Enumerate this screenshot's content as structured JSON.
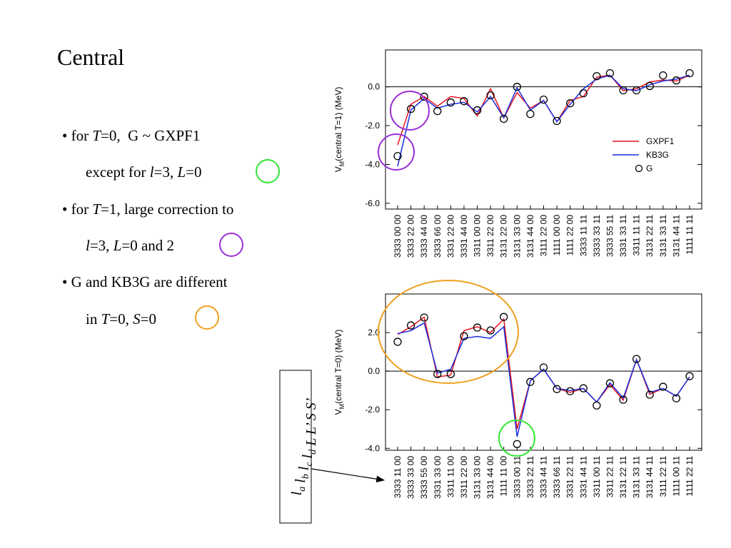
{
  "title": "Central",
  "bullets": [
    [
      {
        "text": "• for "
      },
      {
        "text": "T",
        "italic": true
      },
      {
        "text": "=0,  G ~ GXPF1"
      }
    ],
    [
      {
        "text": "except for "
      },
      {
        "text": "l",
        "italic": true
      },
      {
        "text": "=3, "
      },
      {
        "text": "L",
        "italic": true
      },
      {
        "text": "=0"
      }
    ],
    [
      {
        "text": "• for "
      },
      {
        "text": "T",
        "italic": true
      },
      {
        "text": "=1, large correction to"
      }
    ],
    [
      {
        "text": "l",
        "italic": true
      },
      {
        "text": "=3, "
      },
      {
        "text": "L",
        "italic": true
      },
      {
        "text": "=0 and 2"
      }
    ],
    [
      {
        "text": "• G and KB3G are different"
      }
    ],
    [
      {
        "text": "in "
      },
      {
        "text": "T",
        "italic": true
      },
      {
        "text": "=0, "
      },
      {
        "text": "S",
        "italic": true
      },
      {
        "text": "=0"
      }
    ]
  ],
  "box_label": [
    {
      "text": "l",
      "sub": "a"
    },
    {
      "text": " l",
      "sub": "b"
    },
    {
      "text": " l",
      "sub": "c"
    },
    {
      "text": " l",
      "sub": "d"
    },
    {
      "text": "  L L’  S S’"
    }
  ],
  "chart_data": [
    {
      "type": "line",
      "ylabel": {
        "main": "V",
        "sub": "M",
        "rest": "(central T=1)  (MeV)"
      },
      "categories": [
        "3333 00 00",
        "3333 22 00",
        "3333 44 00",
        "3333 66 00",
        "3331 22 00",
        "3331 44 00",
        "3311 00 00",
        "3311 22 00",
        "3131 22 00",
        "3131 33 00",
        "3131 44 00",
        "3111 22 00",
        "1111 00 00",
        "1111 22 00",
        "3333 11 11",
        "3333 33 11",
        "3333 55 11",
        "3331 33 11",
        "3311 11 11",
        "3131 22 11",
        "3131 33 11",
        "3131 44 11",
        "1111 11 11"
      ],
      "series": [
        {
          "name": "GXPF1",
          "color": "#e8141e",
          "style": "line",
          "values": [
            -3.0,
            -0.9,
            -0.5,
            -1.0,
            -0.5,
            -0.6,
            -1.5,
            -0.1,
            -1.6,
            -0.3,
            -1.1,
            -0.7,
            -1.8,
            -0.7,
            -0.5,
            0.5,
            0.6,
            -0.2,
            -0.1,
            0.25,
            0.35,
            0.3,
            0.6
          ]
        },
        {
          "name": "KB3G",
          "color": "#1a2ee0",
          "style": "line",
          "values": [
            -4.1,
            -1.2,
            -0.6,
            -1.1,
            -0.9,
            -0.8,
            -1.3,
            -0.5,
            -1.6,
            -0.05,
            -1.2,
            -0.7,
            -1.8,
            -0.9,
            -0.1,
            0.4,
            0.6,
            -0.1,
            -0.2,
            0.1,
            0.3,
            0.4,
            0.6
          ]
        },
        {
          "name": "G",
          "color": "#000000",
          "style": "marker",
          "values": [
            -3.57,
            -1.14,
            -0.51,
            -1.25,
            -0.81,
            -0.74,
            -1.21,
            -0.44,
            -1.65,
            0.0,
            -1.4,
            -0.66,
            -1.76,
            -0.85,
            -0.33,
            0.55,
            0.7,
            -0.18,
            -0.18,
            0.04,
            0.59,
            0.33,
            0.7
          ]
        }
      ],
      "ylim": [
        -6.3,
        1.9
      ],
      "yticks": [
        {
          "value": -6,
          "label": "-6.0"
        },
        {
          "value": -4,
          "label": "-4.0"
        },
        {
          "value": -2,
          "label": "-2.0"
        },
        {
          "value": 0,
          "label": "0.0"
        }
      ],
      "legend": "right"
    },
    {
      "type": "line",
      "ylabel": {
        "main": "V",
        "sub": "M",
        "rest": "(central T=0)  (MeV)"
      },
      "categories": [
        "3333 11 00",
        "3333 33 00",
        "3333 55 00",
        "3331 33 00",
        "3311 11 00",
        "3311 22 00",
        "3131 33 00",
        "3131 44 00",
        "1111 11 00",
        "3333 00 11",
        "3333 22 11",
        "3333 44 11",
        "3333 66 11",
        "3331 22 11",
        "3331 44 11",
        "3311 00 11",
        "3311 22 11",
        "3131 22 11",
        "3131 33 11",
        "3131 44 11",
        "3111 22 11",
        "1111 00 11",
        "1111 22 11"
      ],
      "series": [
        {
          "name": "GXPF1",
          "color": "#e8141e",
          "style": "line",
          "values": [
            1.9,
            2.3,
            2.8,
            -0.3,
            -0.2,
            2.1,
            2.3,
            2.0,
            2.7,
            -3.0,
            -0.5,
            0.1,
            -0.9,
            -1.1,
            -0.9,
            -1.6,
            -0.7,
            -1.5,
            0.6,
            -1.2,
            -0.9,
            -1.3,
            -0.3
          ]
        },
        {
          "name": "KB3G",
          "color": "#1a2ee0",
          "style": "line",
          "values": [
            1.95,
            2.1,
            2.5,
            -0.1,
            0.1,
            1.7,
            1.8,
            1.7,
            2.3,
            -3.4,
            -0.5,
            0.1,
            -0.9,
            -1.0,
            -0.9,
            -1.6,
            -0.6,
            -1.4,
            0.6,
            -1.1,
            -0.9,
            -1.3,
            -0.3
          ]
        },
        {
          "name": "G",
          "color": "#000000",
          "style": "marker",
          "values": [
            1.52,
            2.37,
            2.78,
            -0.15,
            -0.15,
            1.81,
            2.26,
            2.11,
            2.81,
            -3.78,
            -0.56,
            0.19,
            -0.93,
            -1.04,
            -0.89,
            -1.78,
            -0.63,
            -1.48,
            0.63,
            -1.22,
            -0.81,
            -1.41,
            -0.26
          ]
        }
      ],
      "ylim": [
        -4.1,
        4.0
      ],
      "yticks": [
        {
          "value": -4,
          "label": "-4.0"
        },
        {
          "value": -2,
          "label": "-2.0"
        },
        {
          "value": 0,
          "label": "0.0"
        },
        {
          "value": 2,
          "label": "2.0"
        }
      ]
    }
  ]
}
